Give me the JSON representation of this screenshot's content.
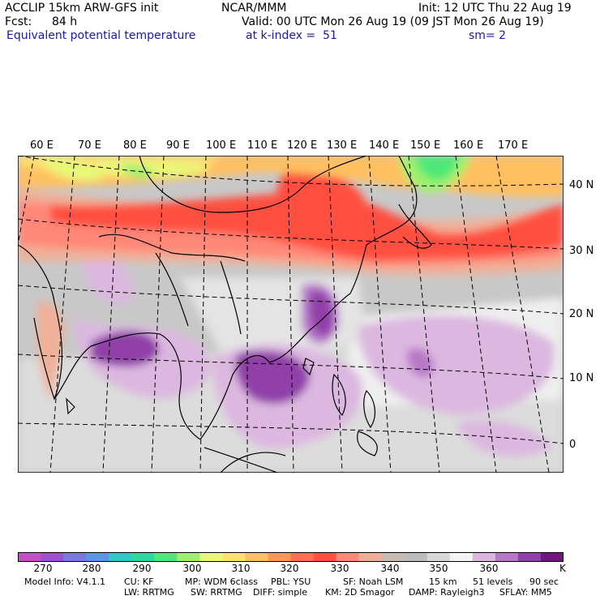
{
  "header": {
    "model": "ACCLIP 15km ARW-GFS init",
    "org": "NCAR/MMM",
    "init": "Init: 12 UTC Thu 22 Aug 19",
    "fcst_label": "Fcst:",
    "fcst_value": "84 h",
    "valid": "Valid: 00 UTC Mon 26 Aug 19 (09 JST Mon 26 Aug 19)",
    "field": "Equivalent potential temperature",
    "level": "at k-index =  51",
    "smooth": "sm= 2"
  },
  "map": {
    "lon_labels": [
      "60 E",
      "70 E",
      "80 E",
      "90 E",
      "100 E",
      "110 E",
      "120 E",
      "130 E",
      "140 E",
      "150 E",
      "160 E",
      "170 E"
    ],
    "lat_labels": [
      "40 N",
      "30 N",
      "20 N",
      "10 N",
      "0"
    ]
  },
  "colorbar": {
    "colors": [
      "#c84fc8",
      "#a050d8",
      "#7a78e6",
      "#5a96ec",
      "#30c8c8",
      "#30d8a0",
      "#50e878",
      "#a0f070",
      "#e8f878",
      "#ffe070",
      "#ffc060",
      "#ff9850",
      "#ff7050",
      "#ff5040",
      "#ff8878",
      "#f0b098",
      "#c8bcb4",
      "#bcbcbc",
      "#d8d8d8",
      "#f4f4f4",
      "#dcb8e0",
      "#b878c8",
      "#9040a8",
      "#701880"
    ],
    "ticks": [
      "270",
      "280",
      "290",
      "300",
      "310",
      "320",
      "330",
      "340",
      "350",
      "360"
    ],
    "unit": "K"
  },
  "model_info": {
    "line1": [
      "Model Info: V4.1.1",
      "CU: KF",
      "MP: WDM 6class",
      "PBL: YSU",
      "SF: Noah LSM",
      "15 km",
      "51 levels",
      "90 sec"
    ],
    "line2": [
      "LW: RRTMG",
      "SW: RRTMG",
      "DIFF: simple",
      "KM: 2D Smagor",
      "DAMP: Rayleigh3",
      "SFLAY: MM5"
    ]
  }
}
